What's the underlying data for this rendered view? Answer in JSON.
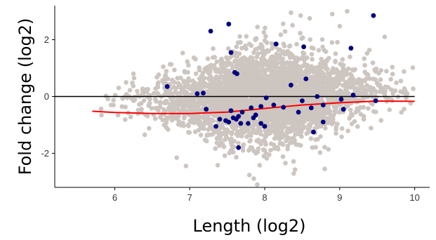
{
  "chart_data": {
    "type": "scatter",
    "xlabel": "Length (log2)",
    "ylabel": "Fold change (log2)",
    "xlim": [
      5.2,
      10.2
    ],
    "ylim": [
      -3.2,
      3.2
    ],
    "x_ticks": [
      6,
      7,
      8,
      9,
      10
    ],
    "y_ticks": [
      -2,
      0,
      2
    ],
    "grid": false,
    "legend": "none",
    "colors": {
      "background_points": "#cdc5c0",
      "highlight_points": "#000080",
      "trend_line": "#ff0000",
      "reference_line": "#000000",
      "axis": "#000000"
    },
    "reference_line_y": 0,
    "background_cloud": {
      "description_of_density": "dense cloud of several thousand gray genes",
      "x_range": [
        5.7,
        10.0
      ],
      "y_range": [
        -3.1,
        3.1
      ]
    },
    "trend": {
      "x": [
        5.7,
        6.0,
        6.5,
        7.0,
        7.5,
        8.0,
        8.5,
        9.0,
        9.5,
        10.0
      ],
      "y": [
        -0.52,
        -0.56,
        -0.6,
        -0.6,
        -0.55,
        -0.42,
        -0.3,
        -0.22,
        -0.16,
        -0.17
      ]
    },
    "highlighted": {
      "x": [
        9.45,
        7.52,
        7.28,
        8.15,
        8.52,
        9.15,
        7.55,
        7.6,
        7.63,
        6.7,
        8.55,
        8.35,
        7.18,
        8.7,
        9.02,
        9.18,
        8.78,
        7.22,
        7.55,
        7.82,
        7.95,
        8.25,
        8.45,
        8.02,
        7.65,
        7.58,
        7.62,
        7.4,
        7.48,
        7.52,
        7.78,
        8.0,
        7.95,
        7.85,
        7.88,
        7.65,
        8.65,
        8.78,
        8.62,
        9.05,
        9.48,
        7.7,
        7.35,
        7.68,
        8.12,
        8.5,
        7.1
      ],
      "y": [
        2.85,
        2.55,
        2.3,
        1.85,
        1.75,
        1.7,
        1.55,
        0.85,
        0.8,
        0.35,
        0.62,
        0.4,
        0.12,
        0.0,
        -0.1,
        0.05,
        -0.3,
        -0.45,
        -0.5,
        -0.4,
        -0.35,
        -0.38,
        -0.55,
        -0.05,
        -0.7,
        -0.75,
        -0.8,
        -0.8,
        -0.85,
        -0.9,
        -0.95,
        -1.05,
        -0.95,
        -0.75,
        -0.65,
        -1.8,
        -1.25,
        -0.9,
        -0.4,
        -0.45,
        -0.15,
        -0.55,
        -1.05,
        -0.95,
        -0.3,
        -0.15,
        0.1
      ]
    }
  }
}
